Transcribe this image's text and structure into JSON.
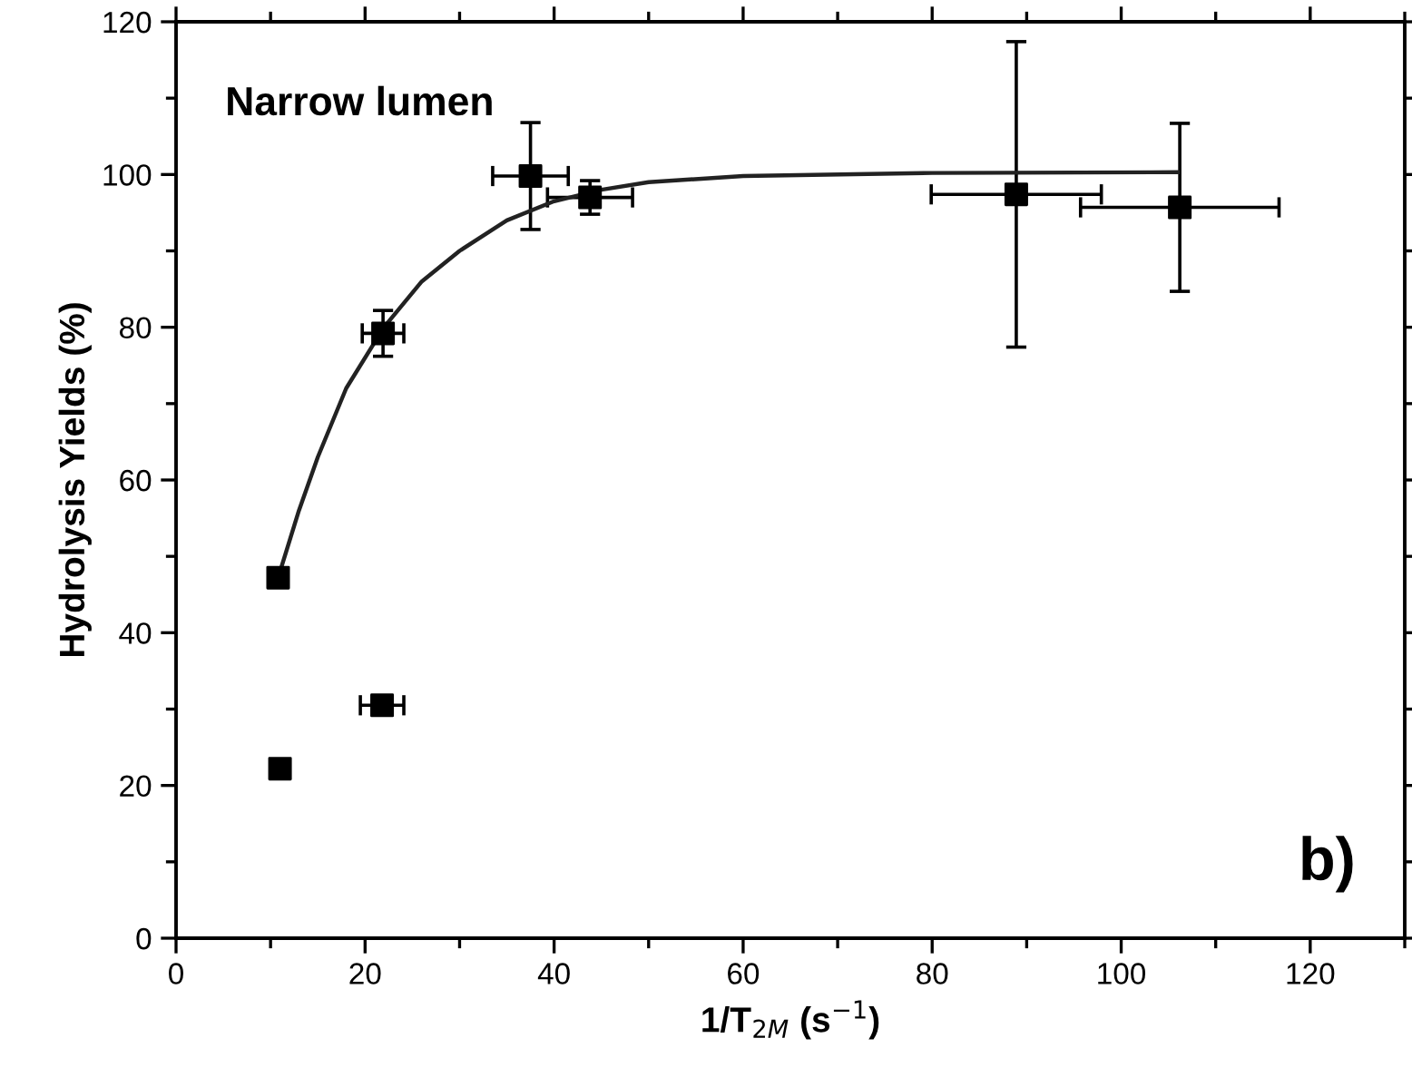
{
  "chart_data": {
    "type": "scatter",
    "xlabel": "1/T$_{2M}$ (s$^{−1}$)",
    "ylabel": "Hydrolysis Yields (%)",
    "annotations": [
      "Narrow lumen",
      "b)"
    ],
    "xlim": [
      0,
      130
    ],
    "xticks": [
      0,
      20,
      40,
      60,
      80,
      100,
      120
    ],
    "ylim": [
      0,
      120
    ],
    "yticks": [
      0,
      20,
      40,
      60,
      80,
      100,
      120
    ],
    "grid": false,
    "marker": "square",
    "series": [
      {
        "color": "#000000",
        "x": [
          10.8,
          11,
          21.9,
          21.8,
          37.5,
          43.8,
          88.9,
          106.2
        ],
        "values": [
          47.2,
          22.2,
          79.2,
          30.5,
          99.8,
          97,
          97.4,
          95.7
        ],
        "errors": [
          null,
          null,
          3,
          null,
          7,
          2.2,
          20,
          11
        ],
        "xerrors": [
          null,
          null,
          2.2,
          2.3,
          4,
          4.5,
          9,
          10.5
        ]
      },
      {
        "type": "line",
        "color": "#222222",
        "marker": "none",
        "line_style": "solid",
        "x": [
          10.8,
          13,
          15,
          18,
          22,
          26,
          30,
          35,
          40,
          45,
          50,
          60,
          80,
          106
        ],
        "values": [
          47.2,
          56,
          63,
          72,
          80,
          86,
          90,
          94,
          96.5,
          98,
          99,
          99.8,
          100.2,
          100.3
        ]
      }
    ]
  }
}
